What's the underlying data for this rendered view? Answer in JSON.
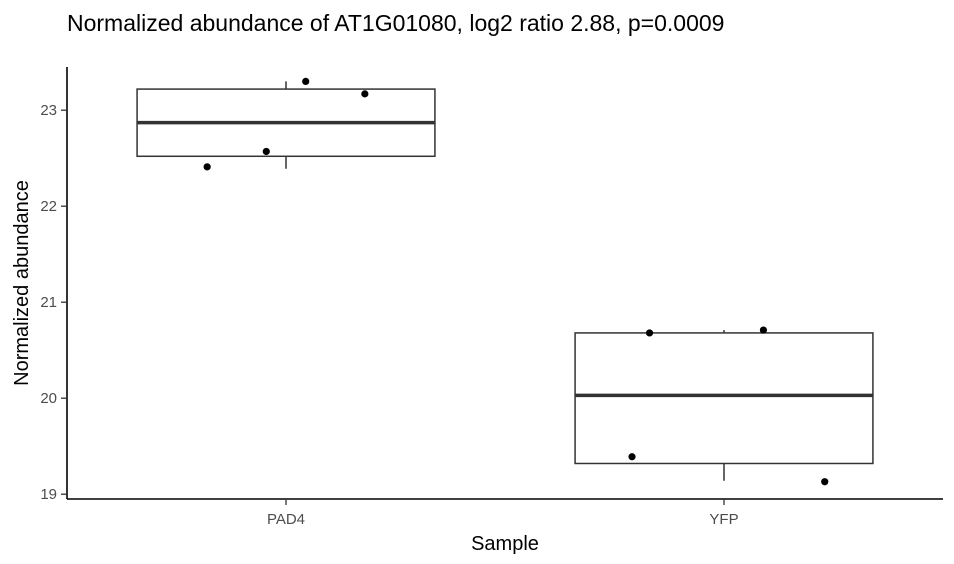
{
  "chart_data": {
    "type": "box",
    "title": "Normalized abundance of AT1G01080, log2 ratio 2.88, p=0.0009",
    "xlabel": "Sample",
    "ylabel": "Normalized abundance",
    "categories": [
      "PAD4",
      "YFP"
    ],
    "ylim": [
      18.95,
      23.45
    ],
    "yticks": [
      19,
      20,
      21,
      22,
      23
    ],
    "grid": false,
    "boxes": [
      {
        "category": "PAD4",
        "whisker_low": 22.39,
        "q1": 22.52,
        "median": 22.87,
        "q3": 23.22,
        "whisker_high": 23.3
      },
      {
        "category": "YFP",
        "whisker_low": 19.14,
        "q1": 19.32,
        "median": 20.03,
        "q3": 20.68,
        "whisker_high": 20.71
      }
    ],
    "points": [
      {
        "category": "PAD4",
        "jitter": -0.36,
        "y": 22.41
      },
      {
        "category": "PAD4",
        "jitter": -0.09,
        "y": 22.57
      },
      {
        "category": "PAD4",
        "jitter": 0.09,
        "y": 23.3
      },
      {
        "category": "PAD4",
        "jitter": 0.36,
        "y": 23.17
      },
      {
        "category": "YFP",
        "jitter": -0.42,
        "y": 19.39
      },
      {
        "category": "YFP",
        "jitter": -0.34,
        "y": 20.68
      },
      {
        "category": "YFP",
        "jitter": 0.18,
        "y": 20.71
      },
      {
        "category": "YFP",
        "jitter": 0.46,
        "y": 19.13
      }
    ]
  }
}
